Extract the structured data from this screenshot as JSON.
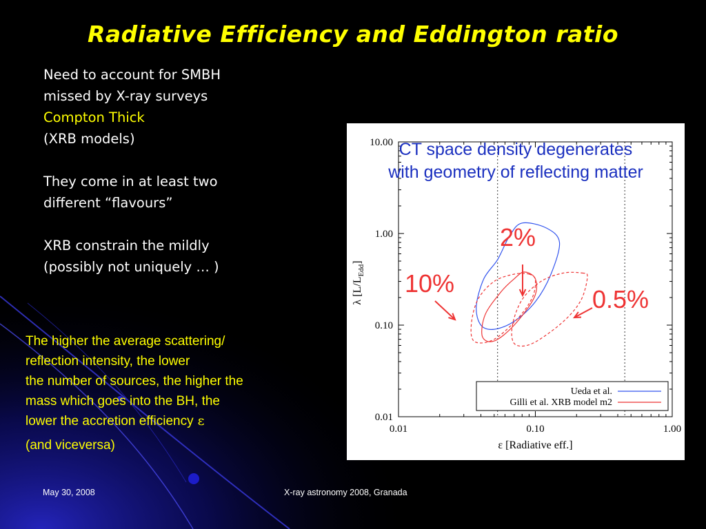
{
  "title": "Radiative Efficiency and Eddington ratio",
  "left_block": {
    "line1": "Need to account for SMBH",
    "line2": "missed by X-ray surveys",
    "line3": "Compton Thick",
    "line4": "(XRB models)",
    "line5": "They come in at least two",
    "line6": "different “flavours”",
    "line7": "XRB constrain the mildly",
    "line8": "(possibly not uniquely … )"
  },
  "yellow_block": {
    "line1": "The higher the average scattering/",
    "line2": "reflection intensity, the lower",
    "line3": "the number of sources, the higher the",
    "line4": "mass which goes into the BH, the",
    "line5": "lower the accretion  efficiency",
    "epsilon": "ε",
    "line6": "(and viceversa)"
  },
  "figure": {
    "caption_line1": "CT space density  degenerates",
    "caption_line2": "with geometry of reflecting matter",
    "label_2": "2%",
    "label_10": "10%",
    "label_05": "0.5%",
    "colors": {
      "ueda": "#3355ee",
      "gilli": "#ee3333",
      "caption": "#1a2fbf"
    }
  },
  "chart_data": {
    "type": "contour",
    "xlabel": "ε [Radiative eff.]",
    "ylabel": "λ [L/L",
    "ylabel_sub": "Edd",
    "ylabel_close": "]",
    "xscale": "log",
    "yscale": "log",
    "xlim": [
      0.01,
      1.0
    ],
    "ylim": [
      0.01,
      10.0
    ],
    "x_ticks": [
      "0.01",
      "0.10",
      "1.00"
    ],
    "y_ticks": [
      "0.01",
      "0.10",
      "1.00",
      "10.00"
    ],
    "x_tick_values": [
      0.01,
      0.1,
      1.0
    ],
    "y_tick_values": [
      0.01,
      0.1,
      1.0,
      10.0
    ],
    "vertical_dotted_lines_x": [
      0.053,
      0.45
    ],
    "series": [
      {
        "name": "Ueda et al.",
        "style": "solid",
        "color": "#3355ee",
        "points": [
          [
            0.08,
            1.3
          ],
          [
            0.12,
            1.15
          ],
          [
            0.15,
            0.8
          ],
          [
            0.13,
            0.36
          ],
          [
            0.1,
            0.18
          ],
          [
            0.07,
            0.11
          ],
          [
            0.05,
            0.09
          ],
          [
            0.04,
            0.1
          ],
          [
            0.037,
            0.16
          ],
          [
            0.042,
            0.32
          ],
          [
            0.053,
            0.52
          ],
          [
            0.065,
            0.95
          ],
          [
            0.08,
            1.3
          ]
        ]
      },
      {
        "name": "Gilli et al. XRB model m2",
        "style": "solid",
        "color": "#ee3333",
        "points": [
          [
            0.083,
            0.38
          ],
          [
            0.1,
            0.32
          ],
          [
            0.098,
            0.2
          ],
          [
            0.07,
            0.1
          ],
          [
            0.05,
            0.067
          ],
          [
            0.041,
            0.075
          ],
          [
            0.043,
            0.13
          ],
          [
            0.056,
            0.23
          ],
          [
            0.07,
            0.32
          ],
          [
            0.083,
            0.38
          ]
        ]
      },
      {
        "name": "Gilli 10%",
        "style": "dashed",
        "color": "#ee3333",
        "points": [
          [
            0.09,
            0.36
          ],
          [
            0.1,
            0.31
          ],
          [
            0.095,
            0.2
          ],
          [
            0.075,
            0.12
          ],
          [
            0.05,
            0.07
          ],
          [
            0.036,
            0.066
          ],
          [
            0.034,
            0.1
          ],
          [
            0.038,
            0.19
          ],
          [
            0.05,
            0.3
          ],
          [
            0.07,
            0.36
          ],
          [
            0.09,
            0.36
          ]
        ]
      },
      {
        "name": "Gilli 0.5%",
        "style": "dashed",
        "color": "#ee3333",
        "points": [
          [
            0.22,
            0.37
          ],
          [
            0.24,
            0.34
          ],
          [
            0.22,
            0.2
          ],
          [
            0.18,
            0.13
          ],
          [
            0.13,
            0.085
          ],
          [
            0.09,
            0.061
          ],
          [
            0.07,
            0.063
          ],
          [
            0.068,
            0.1
          ],
          [
            0.08,
            0.19
          ],
          [
            0.11,
            0.3
          ],
          [
            0.16,
            0.37
          ],
          [
            0.22,
            0.37
          ]
        ]
      }
    ],
    "legend": [
      {
        "label": "Ueda et al.",
        "color": "#3355ee"
      },
      {
        "label": "Gilli et al. XRB model m2",
        "color": "#ee3333"
      }
    ],
    "legend_position": "bottom-right"
  },
  "footer": {
    "date": "May 30, 2008",
    "event": "X-ray astronomy 2008, Granada"
  }
}
